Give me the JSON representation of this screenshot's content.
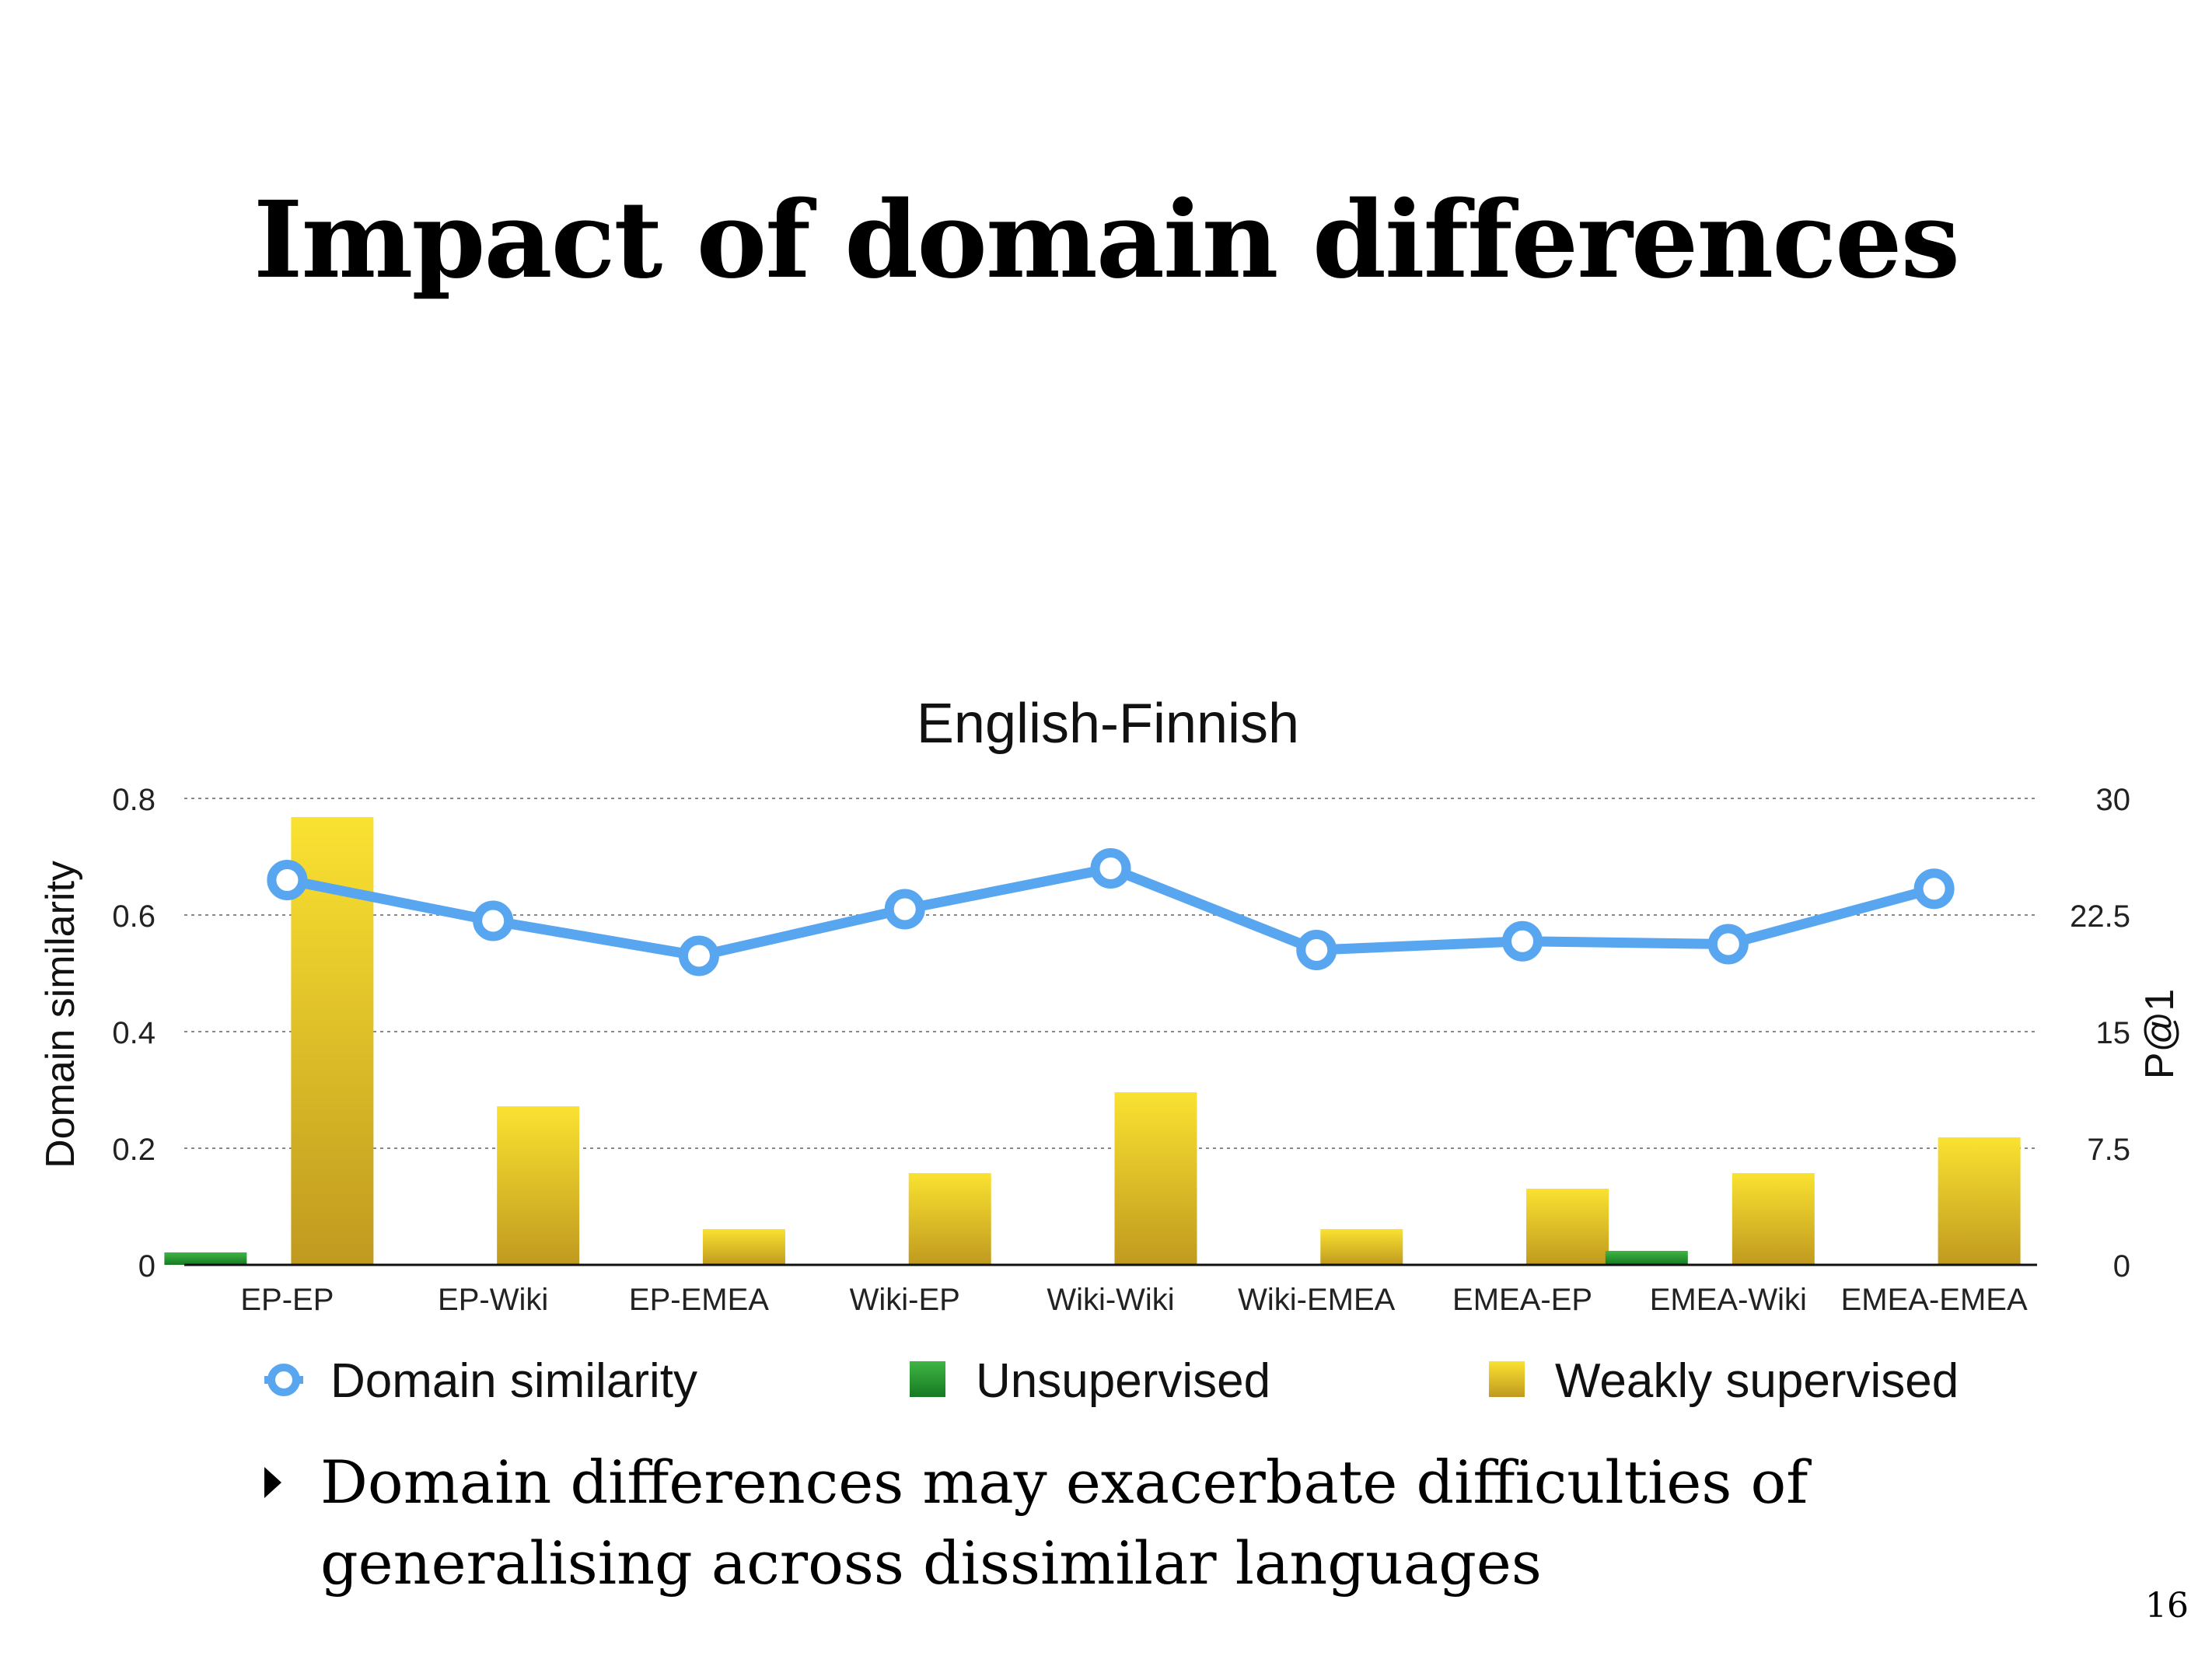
{
  "slide": {
    "title": "Impact of domain differences",
    "bullet": "Domain differences may exacerbate difficulties of generalising across dissimilar languages",
    "page_number": "16"
  },
  "chart_data": {
    "type": "bar",
    "title": "English-Finnish",
    "categories": [
      "EP-EP",
      "EP-Wiki",
      "EP-EMEA",
      "Wiki-EP",
      "Wiki-Wiki",
      "Wiki-EMEA",
      "EMEA-EP",
      "EMEA-Wiki",
      "EMEA-EMEA"
    ],
    "left_axis": {
      "label": "Domain similarity",
      "ticks": [
        "0",
        "0.2",
        "0.4",
        "0.6",
        "0.8"
      ],
      "range": [
        0,
        0.8
      ]
    },
    "right_axis": {
      "label": "P@1",
      "ticks": [
        "0",
        "7.5",
        "15",
        "22.5",
        "30"
      ],
      "range": [
        0,
        30
      ]
    },
    "series": [
      {
        "name": "Unsupervised",
        "kind": "bar",
        "axis": "right",
        "color": "#2e9e34",
        "values": [
          0.8,
          0,
          0,
          0,
          0,
          0,
          0,
          0.9,
          0
        ]
      },
      {
        "name": "Weakly supervised",
        "kind": "bar",
        "axis": "right",
        "color": "#e7c01f",
        "values": [
          28.8,
          10.2,
          2.3,
          5.9,
          11.1,
          2.3,
          4.9,
          5.9,
          8.2
        ]
      },
      {
        "name": "Domain similarity",
        "kind": "line",
        "axis": "left",
        "color": "#58a6f0",
        "values": [
          0.66,
          0.59,
          0.53,
          0.61,
          0.68,
          0.54,
          0.555,
          0.55,
          0.645
        ]
      }
    ],
    "grid": true,
    "legend_position": "bottom"
  }
}
